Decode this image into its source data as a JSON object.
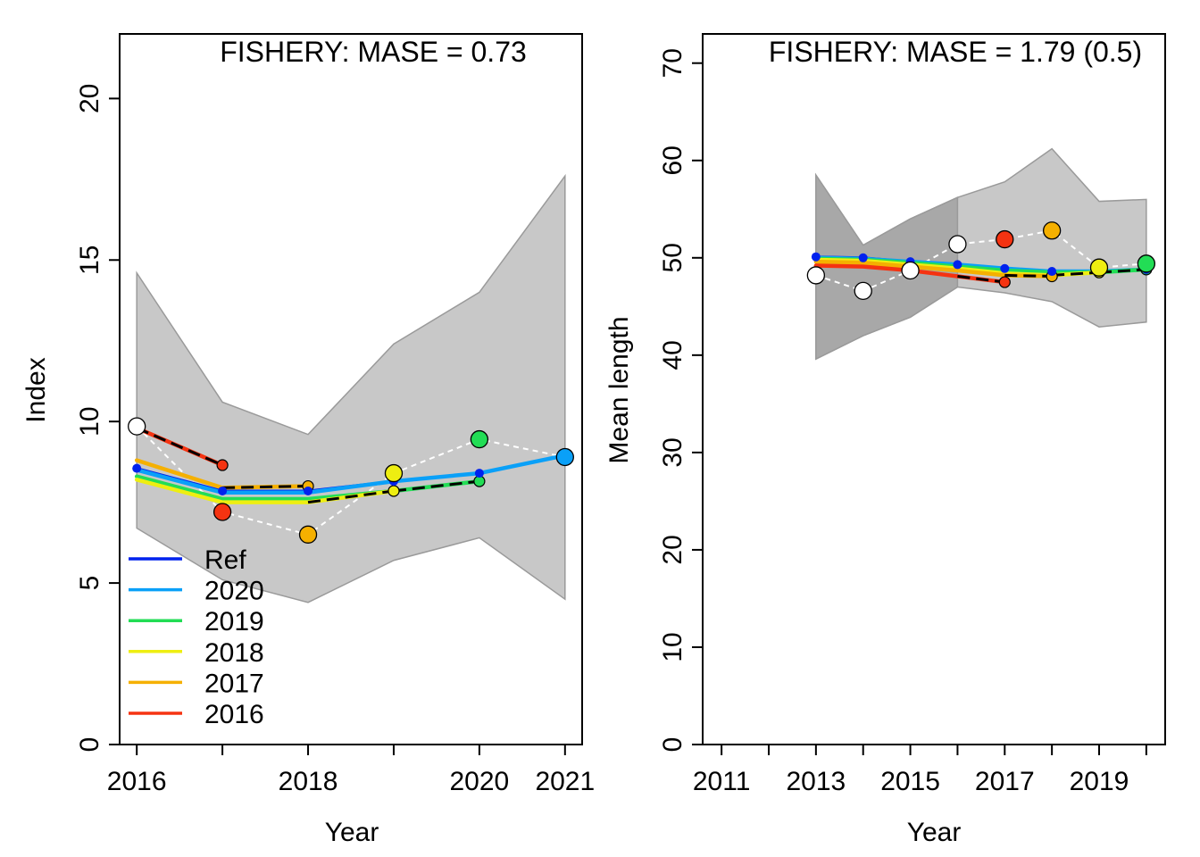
{
  "chart_data": [
    {
      "type": "line",
      "title": "FISHERY: MASE = 0.73",
      "xlabel": "Year",
      "ylabel": "Index",
      "xlim": [
        2015.8,
        2021.2
      ],
      "ylim": [
        0,
        22
      ],
      "x_ticks": [
        {
          "value": 2016,
          "label": "2016"
        },
        {
          "value": 2018,
          "label": "2018"
        },
        {
          "value": 2020,
          "label": "2020"
        },
        {
          "value": 2021,
          "label": "2021"
        }
      ],
      "x_minor_ticks": [
        2017,
        2019
      ],
      "y_ticks": [
        {
          "value": 0,
          "label": "0"
        },
        {
          "value": 5,
          "label": "5"
        },
        {
          "value": 10,
          "label": "10"
        },
        {
          "value": 15,
          "label": "15"
        },
        {
          "value": 20,
          "label": "20"
        }
      ],
      "grid": false,
      "legend_position": "bottom-left",
      "legend": [
        {
          "label": "Ref",
          "color": "#0022ee"
        },
        {
          "label": "2020",
          "color": "#0aa0f8"
        },
        {
          "label": "2019",
          "color": "#22dd55"
        },
        {
          "label": "2018",
          "color": "#eeee11"
        },
        {
          "label": "2017",
          "color": "#f5b000"
        },
        {
          "label": "2016",
          "color": "#f53311"
        }
      ],
      "bands": [
        {
          "fill": "#c8c8c8",
          "x": [
            2016,
            2017,
            2018,
            2019,
            2020,
            2021
          ],
          "upper": [
            14.6,
            10.6,
            9.6,
            12.4,
            14.0,
            17.6
          ],
          "lower": [
            6.7,
            5.1,
            4.4,
            5.7,
            6.4,
            4.5
          ]
        }
      ],
      "observed": {
        "x": [
          2016,
          2017,
          2018,
          2019,
          2020,
          2021
        ],
        "y": [
          9.85,
          7.2,
          6.5,
          8.4,
          9.45,
          8.9
        ],
        "colors": [
          "#ffffff",
          "#f53311",
          "#f5b000",
          "#eeee11",
          "#22dd55",
          "#0aa0f8"
        ]
      },
      "series": [
        {
          "name": "Ref",
          "color": "#0022ee",
          "x": [
            2016,
            2017,
            2018,
            2019,
            2020,
            2021
          ],
          "y": [
            8.55,
            7.85,
            7.85,
            8.15,
            8.4,
            8.95
          ]
        },
        {
          "name": "2020",
          "color": "#0aa0f8",
          "x": [
            2016,
            2017,
            2018,
            2019,
            2020,
            2021
          ],
          "y": [
            8.5,
            7.8,
            7.8,
            8.15,
            8.4,
            8.95
          ]
        },
        {
          "name": "2019",
          "color": "#22dd55",
          "x": [
            2016,
            2017,
            2018,
            2019,
            2020
          ],
          "y": [
            8.3,
            7.6,
            7.6,
            7.85,
            8.15
          ]
        },
        {
          "name": "2018",
          "color": "#eeee11",
          "x": [
            2016,
            2017,
            2018,
            2019
          ],
          "y": [
            8.2,
            7.5,
            7.5,
            7.85
          ]
        },
        {
          "name": "2017",
          "color": "#f5b000",
          "x": [
            2016,
            2017,
            2018
          ],
          "y": [
            8.8,
            7.95,
            8.0
          ]
        },
        {
          "name": "2016",
          "color": "#f53311",
          "x": [
            2016,
            2017
          ],
          "y": [
            9.8,
            8.65
          ]
        }
      ]
    },
    {
      "type": "line",
      "title": "FISHERY: MASE = 1.79 (0.5)",
      "xlabel": "Year",
      "ylabel": "Mean length",
      "xlim": [
        2010.6,
        2020.4
      ],
      "ylim": [
        0,
        73
      ],
      "x_ticks": [
        {
          "value": 2011,
          "label": "2011"
        },
        {
          "value": 2013,
          "label": "2013"
        },
        {
          "value": 2015,
          "label": "2015"
        },
        {
          "value": 2017,
          "label": "2017"
        },
        {
          "value": 2019,
          "label": "2019"
        }
      ],
      "x_minor_ticks": [
        2012,
        2014,
        2016,
        2018,
        2020
      ],
      "y_ticks": [
        {
          "value": 0,
          "label": "0"
        },
        {
          "value": 10,
          "label": "10"
        },
        {
          "value": 20,
          "label": "20"
        },
        {
          "value": 30,
          "label": "30"
        },
        {
          "value": 40,
          "label": "40"
        },
        {
          "value": 50,
          "label": "50"
        },
        {
          "value": 60,
          "label": "60"
        },
        {
          "value": 70,
          "label": "70"
        }
      ],
      "grid": false,
      "bands": [
        {
          "fill": "#c8c8c8",
          "x": [
            2013,
            2014,
            2015,
            2016,
            2017,
            2018,
            2019,
            2020
          ],
          "upper": [
            58.5,
            51.3,
            54.0,
            56.2,
            57.8,
            61.2,
            55.8,
            56.0
          ],
          "lower": [
            39.6,
            42.0,
            43.9,
            47.0,
            46.4,
            45.5,
            42.9,
            43.4
          ]
        },
        {
          "fill": "#a8a8a8",
          "x": [
            2013,
            2014,
            2015,
            2016
          ],
          "upper": [
            58.5,
            51.3,
            54.0,
            56.2
          ],
          "lower": [
            39.6,
            42.0,
            43.9,
            47.0
          ]
        }
      ],
      "observed": {
        "x": [
          2013,
          2014,
          2015,
          2016,
          2017,
          2018,
          2019,
          2020
        ],
        "y": [
          48.2,
          46.6,
          48.7,
          51.4,
          51.9,
          52.8,
          49.0,
          49.4
        ],
        "colors": [
          "#ffffff",
          "#ffffff",
          "#ffffff",
          "#ffffff",
          "#f53311",
          "#f5b000",
          "#eeee11",
          "#22dd55"
        ]
      },
      "series": [
        {
          "name": "Ref",
          "color": "#0022ee",
          "x": [
            2013,
            2014,
            2015,
            2016,
            2017,
            2018,
            2019,
            2020
          ],
          "y": [
            50.1,
            50.0,
            49.6,
            49.3,
            48.9,
            48.6,
            48.6,
            48.8
          ]
        },
        {
          "name": "2020",
          "color": "#0aa0f8",
          "x": [
            2013,
            2014,
            2015,
            2016,
            2017,
            2018,
            2019,
            2020
          ],
          "y": [
            50.0,
            49.9,
            49.6,
            49.3,
            48.9,
            48.6,
            48.6,
            48.8
          ]
        },
        {
          "name": "2019",
          "color": "#22dd55",
          "x": [
            2013,
            2014,
            2015,
            2016,
            2017,
            2018,
            2019,
            2020
          ],
          "y": [
            49.9,
            49.8,
            49.5,
            49.1,
            48.7,
            48.5,
            48.5,
            48.8
          ]
        },
        {
          "name": "2018",
          "color": "#eeee11",
          "x": [
            2013,
            2014,
            2015,
            2016,
            2017,
            2018,
            2019
          ],
          "y": [
            49.8,
            49.7,
            49.3,
            48.9,
            48.4,
            48.2,
            48.5
          ]
        },
        {
          "name": "2017",
          "color": "#f5b000",
          "x": [
            2013,
            2014,
            2015,
            2016,
            2017,
            2018
          ],
          "y": [
            49.6,
            49.5,
            49.1,
            48.7,
            48.2,
            48.1
          ]
        },
        {
          "name": "2016",
          "color": "#f53311",
          "x": [
            2013,
            2014,
            2015,
            2016,
            2017
          ],
          "y": [
            49.2,
            49.1,
            48.7,
            48.1,
            47.5
          ]
        }
      ]
    }
  ]
}
